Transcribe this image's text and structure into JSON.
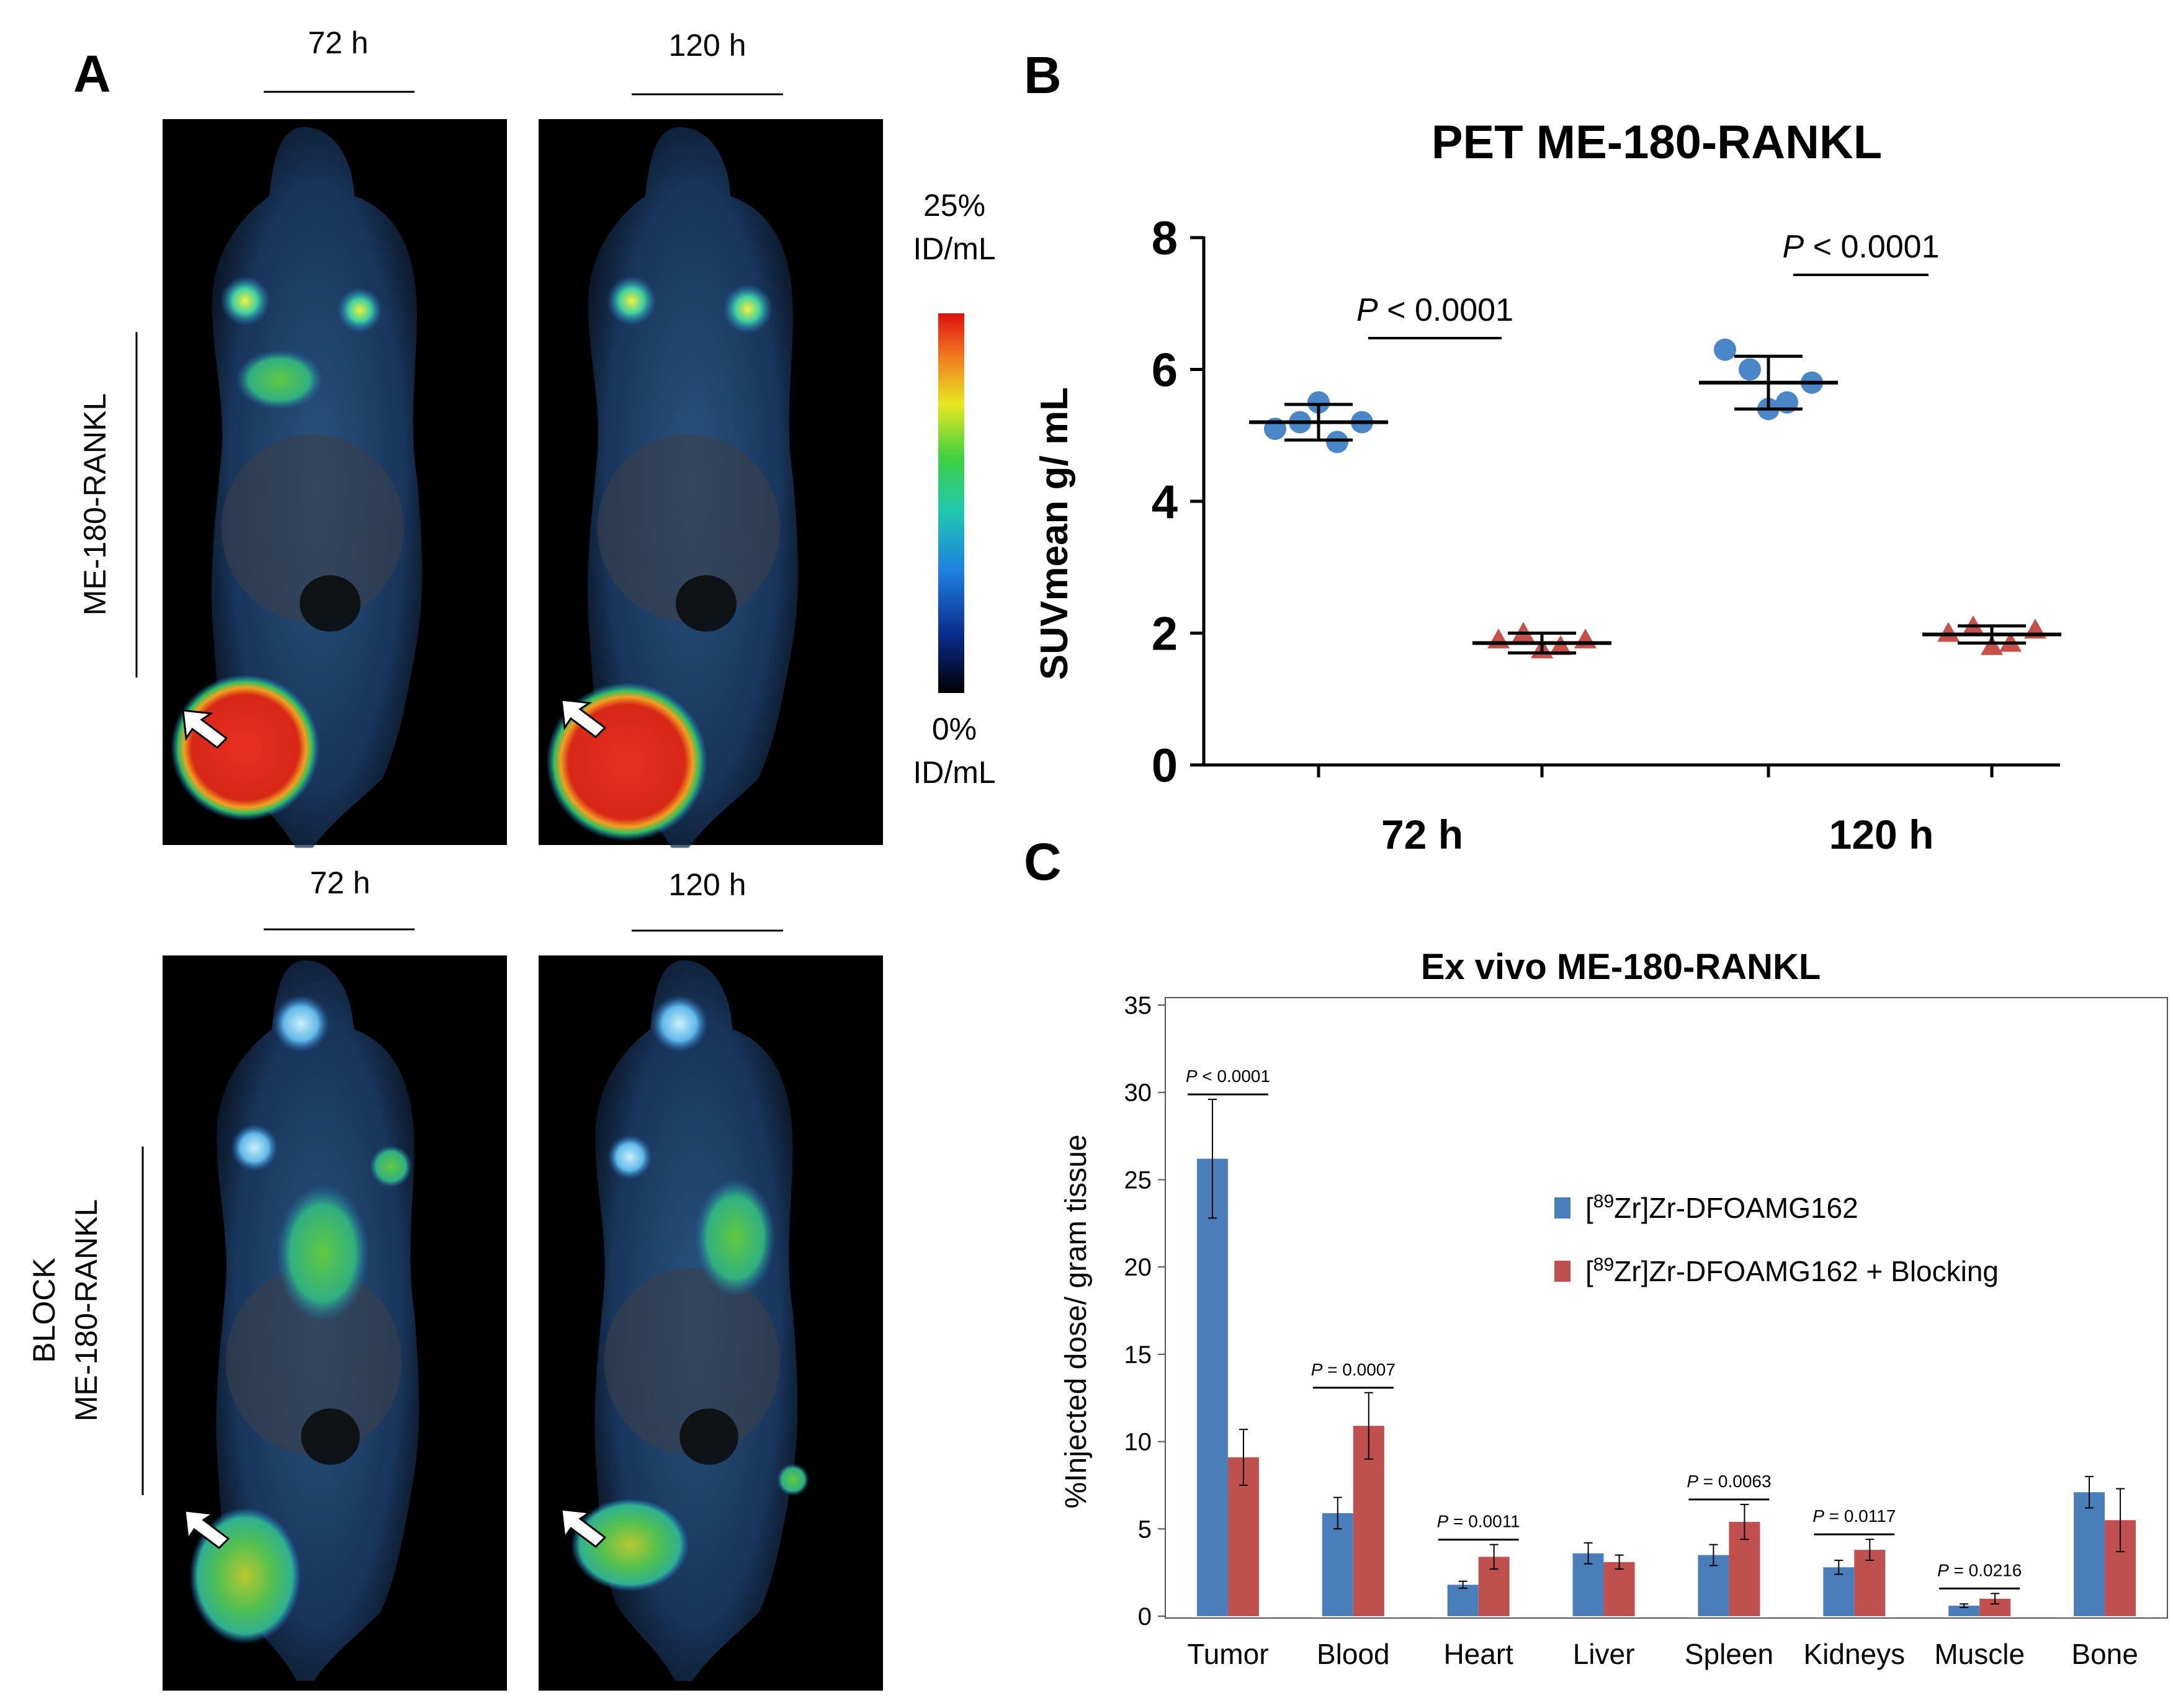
{
  "panel_a": {
    "letter": "A",
    "top_times": [
      "72 h",
      "120 h"
    ],
    "bottom_times": [
      "72 h",
      "120 h"
    ],
    "row1_label": "ME-180-RANKL",
    "row2_label_line1": "BLOCK",
    "row2_label_line2": "ME-180-RANKL",
    "scale_max_line1": "25%",
    "scale_max_line2": "ID/mL",
    "scale_min_line1": "0%",
    "scale_min_line2": "ID/mL"
  },
  "panel_b": {
    "letter": "B"
  },
  "panel_c": {
    "letter": "C"
  },
  "colors": {
    "blue_dot": "#4a86c8",
    "red_tri": "#c8504a",
    "bar_blue": "#4a7ebb",
    "bar_red": "#c0504d"
  },
  "chart_data": [
    {
      "type": "scatter",
      "title": "PET ME-180-RANKL",
      "ylabel": "SUVmean g/ mL",
      "ylim": [
        0,
        8
      ],
      "yticks": [
        0,
        2,
        4,
        6,
        8
      ],
      "groups": [
        "72 h",
        "120 h"
      ],
      "p_values": [
        "P < 0.0001",
        "P < 0.0001"
      ],
      "series": [
        {
          "name": "ME-180-RANKL",
          "marker": "circle",
          "points": [
            [
              5.1,
              5.2,
              5.5,
              4.9,
              5.2
            ],
            [
              6.3,
              6.0,
              5.4,
              5.5,
              5.8
            ]
          ],
          "mean": [
            5.2,
            5.8
          ],
          "err": [
            0.27,
            0.4
          ]
        },
        {
          "name": "BLOCK ME-180-RANKL",
          "marker": "triangle",
          "points": [
            [
              1.9,
              2.0,
              1.75,
              1.8,
              1.9
            ],
            [
              2.0,
              2.1,
              1.8,
              1.85,
              2.05
            ]
          ],
          "mean": [
            1.85,
            1.98
          ],
          "err": [
            0.15,
            0.13
          ]
        }
      ]
    },
    {
      "type": "bar",
      "title": "Ex vivo ME-180-RANKL",
      "ylabel": "%Injected dose/ gram tissue",
      "ylim": [
        0,
        35
      ],
      "yticks": [
        0,
        5,
        10,
        15,
        20,
        25,
        30,
        35
      ],
      "categories": [
        "Tumor",
        "Blood",
        "Heart",
        "Liver",
        "Spleen",
        "Kidneys",
        "Muscle",
        "Bone"
      ],
      "series": [
        {
          "name": "[89Zr]Zr-DFOAMG162",
          "legend_prefix": "[",
          "legend_sup": "89",
          "legend_suffix": "Zr]Zr-DFOAMG162",
          "values": [
            26.2,
            5.9,
            1.8,
            3.6,
            3.5,
            2.8,
            0.6,
            7.1
          ],
          "errors": [
            3.4,
            0.9,
            0.2,
            0.6,
            0.6,
            0.4,
            0.1,
            0.9
          ]
        },
        {
          "name": "[89Zr]Zr-DFOAMG162 + Blocking",
          "legend_prefix": "[",
          "legend_sup": "89",
          "legend_suffix": "Zr]Zr-DFOAMG162 + Blocking",
          "values": [
            9.1,
            10.9,
            3.4,
            3.1,
            5.4,
            3.8,
            1.0,
            5.5
          ],
          "errors": [
            1.6,
            1.9,
            0.7,
            0.4,
            1.0,
            0.6,
            0.3,
            1.8
          ]
        }
      ],
      "p_values": [
        {
          "category": "Tumor",
          "label": "P < 0.0001"
        },
        {
          "category": "Blood",
          "label": "P = 0.0007"
        },
        {
          "category": "Heart",
          "label": "P = 0.0011"
        },
        {
          "category": "Spleen",
          "label": "P = 0.0063"
        },
        {
          "category": "Kidneys",
          "label": "P = 0.0117"
        },
        {
          "category": "Muscle",
          "label": "P = 0.0216"
        }
      ]
    }
  ]
}
